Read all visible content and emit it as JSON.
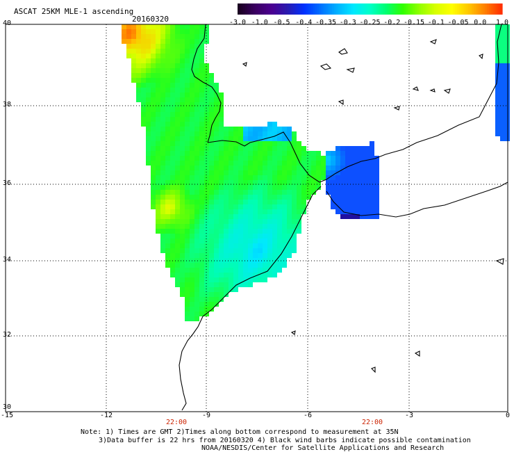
{
  "header": {
    "title": "ASCAT 25KM MLE-1 ascending",
    "date": "20160320"
  },
  "colorbar": {
    "labels": [
      "-3.0",
      "-1.0",
      "-0.5",
      "-0.4",
      "-0.35",
      "-0.3",
      "-0.25",
      "-0.2",
      "-0.15",
      "-0.1",
      "-0.05",
      "0.0",
      "1.0"
    ],
    "colors": [
      "#1a0020",
      "#4b0082",
      "#2a1bb0",
      "#0030ff",
      "#0080ff",
      "#00c0ff",
      "#00ffff",
      "#00ff90",
      "#40ff00",
      "#a0ff00",
      "#ffff00",
      "#ffa000",
      "#ff2000"
    ]
  },
  "axes": {
    "lat_labels": [
      "40",
      "38",
      "36",
      "34",
      "32",
      "30"
    ],
    "lon_labels": [
      "-15",
      "-12",
      "-9",
      "-6",
      "-3",
      "0"
    ],
    "time_labels": [
      "22:00",
      "22:00"
    ]
  },
  "notes": {
    "line1": "Note: 1) Times are GMT 2)Times along bottom correspond to measurement at 35N",
    "line2": "3)Data buffer is 22 hrs from 20160320 4) Black wind barbs indicate possible contamination",
    "line3": "NOAA/NESDIS/Center for Satellite Applications and Research"
  }
}
